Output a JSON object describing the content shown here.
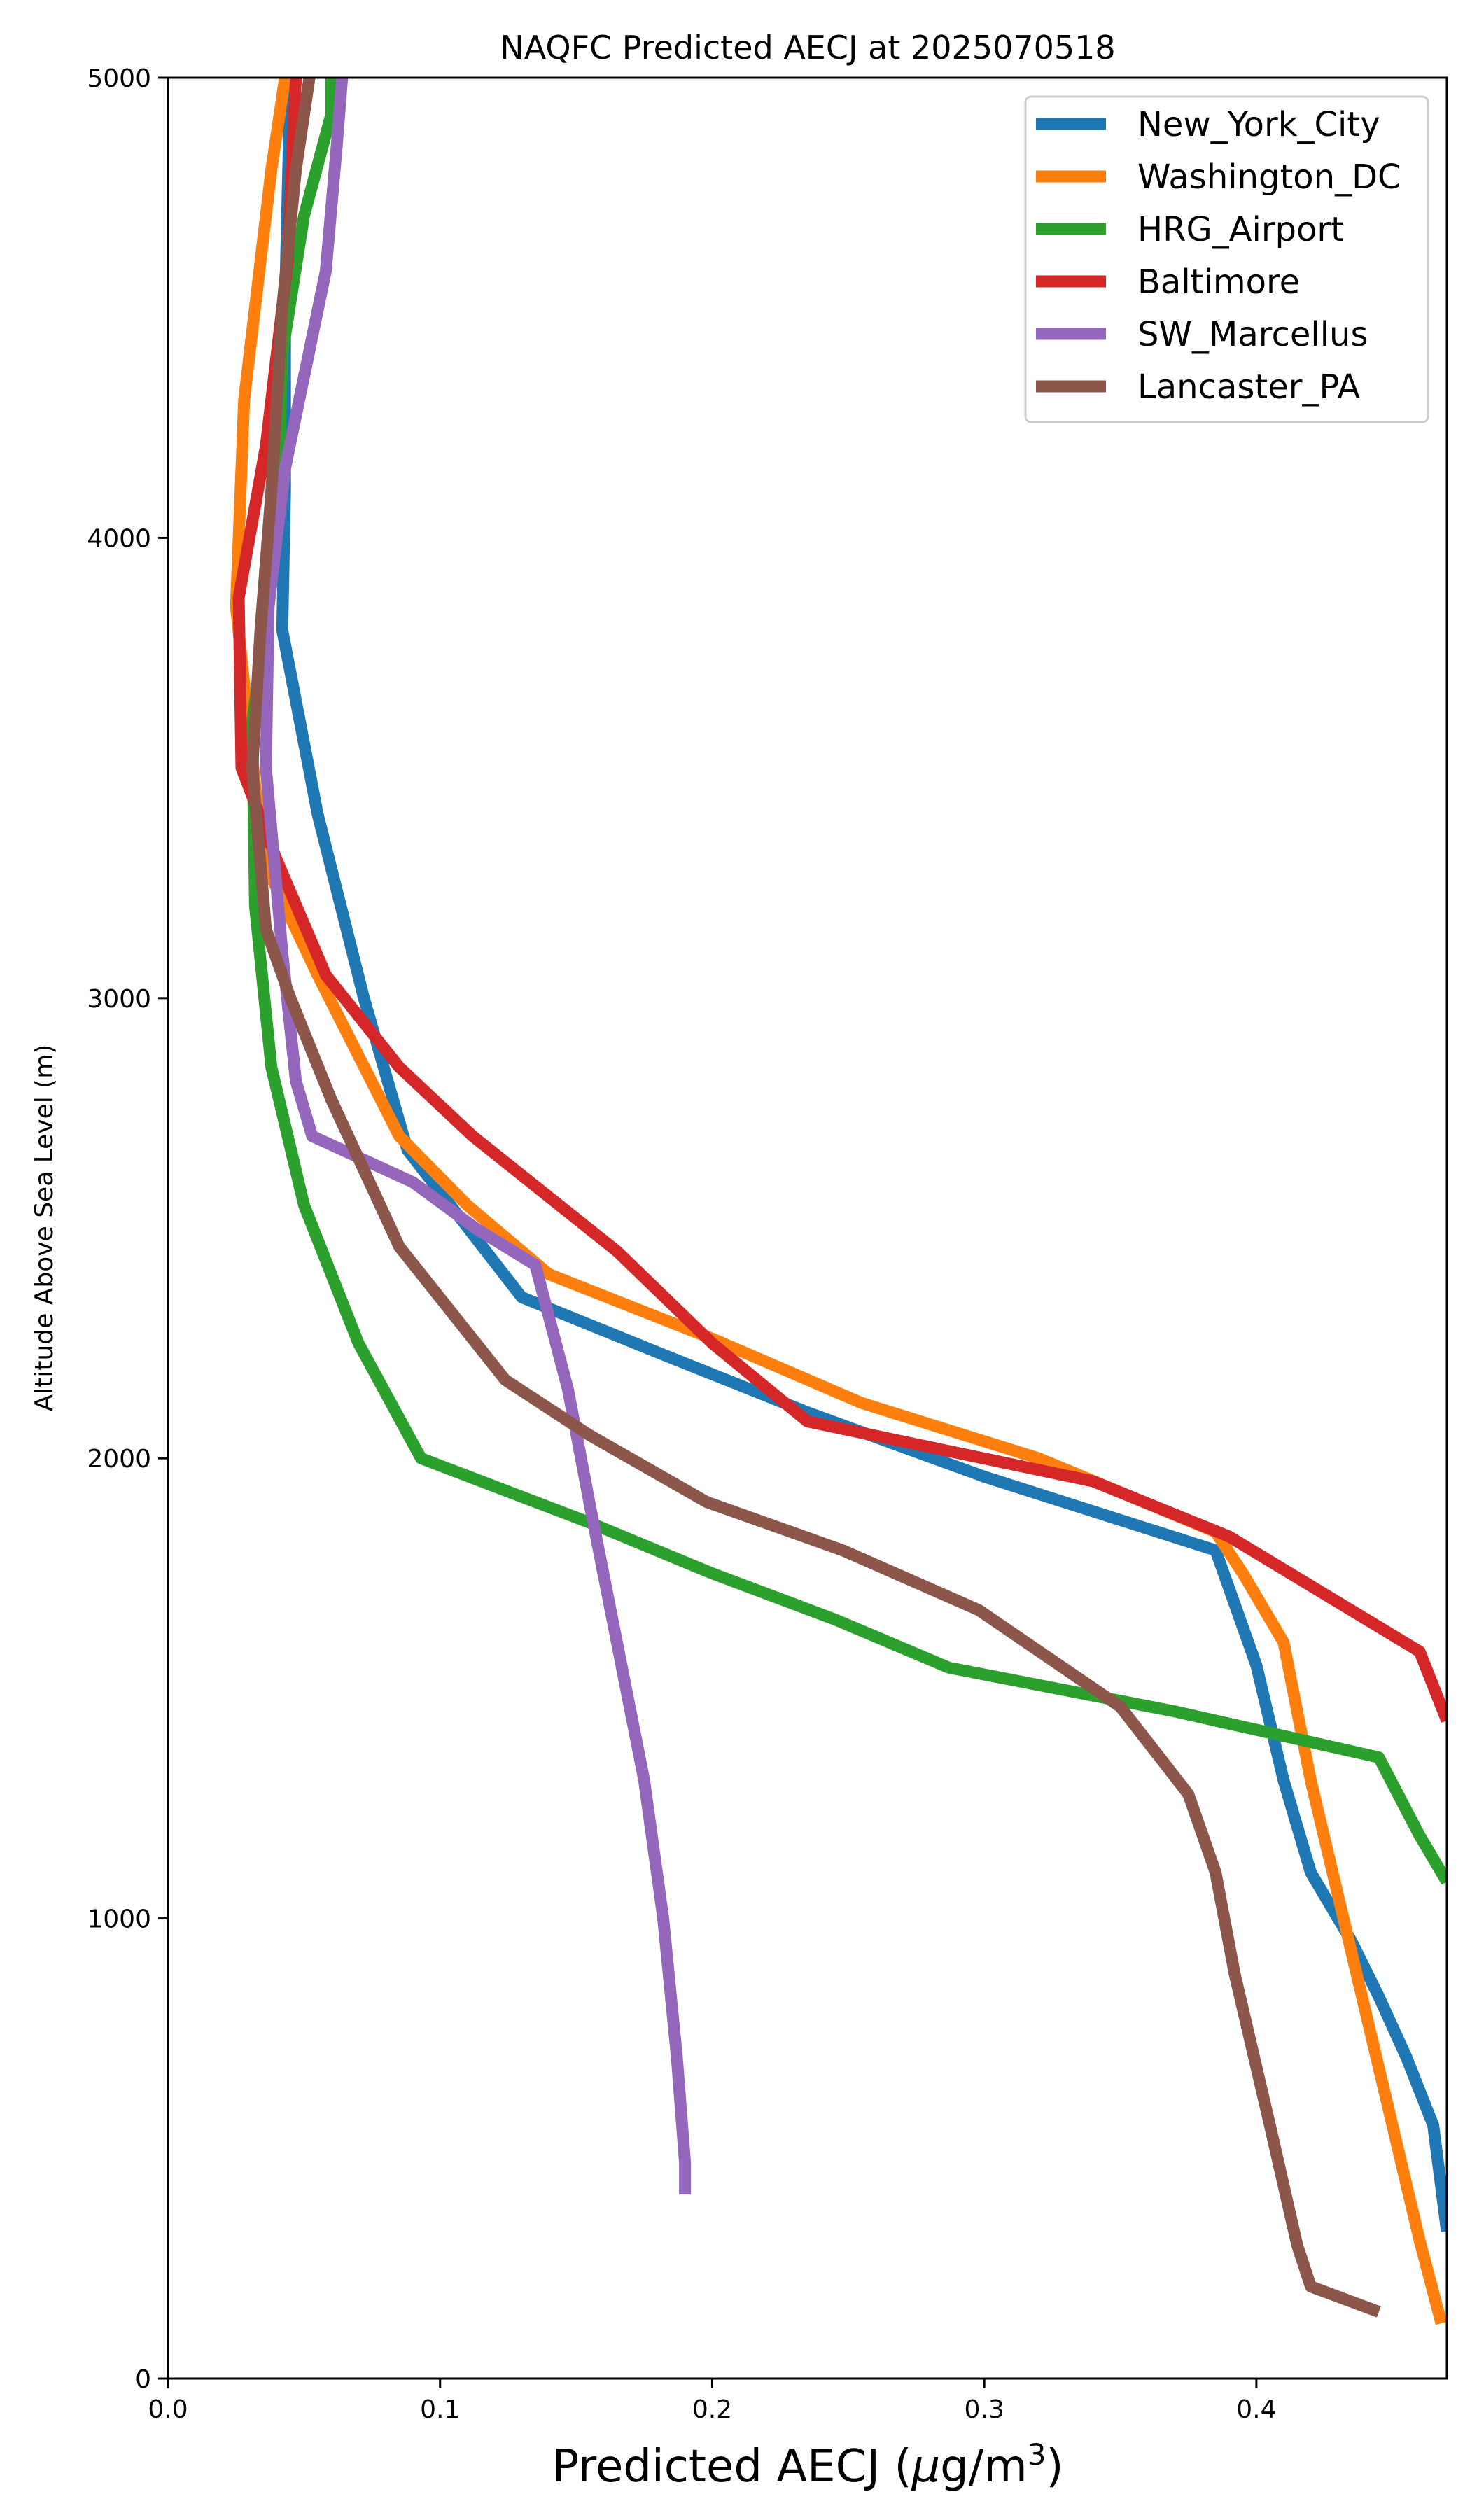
{
  "chart_data": {
    "type": "line",
    "title": "NAQFC Predicted AECJ at 2025070518",
    "xlabel_prefix": "Predicted AECJ (",
    "xlabel_mu": "μ",
    "xlabel_unit": "g/m",
    "xlabel_sup": "3",
    "xlabel_suffix": ")",
    "ylabel": "Altitude Above Sea Level (m)",
    "xlim": [
      0.0,
      0.47
    ],
    "ylim": [
      0,
      5000
    ],
    "xticks": [
      0.0,
      0.1,
      0.2,
      0.3,
      0.4
    ],
    "xtick_labels": [
      "0.0",
      "0.1",
      "0.2",
      "0.3",
      "0.4"
    ],
    "yticks": [
      0,
      1000,
      2000,
      3000,
      4000,
      5000
    ],
    "ytick_labels": [
      "0",
      "1000",
      "2000",
      "3000",
      "4000",
      "5000"
    ],
    "grid": false,
    "legend_position": "top-right",
    "series": [
      {
        "name": "New_York_City",
        "color": "#1f77b4",
        "points": [
          [
            0.47,
            320
          ],
          [
            0.465,
            550
          ],
          [
            0.455,
            700
          ],
          [
            0.445,
            830
          ],
          [
            0.435,
            950
          ],
          [
            0.42,
            1100
          ],
          [
            0.41,
            1300
          ],
          [
            0.4,
            1550
          ],
          [
            0.385,
            1800
          ],
          [
            0.3,
            1960
          ],
          [
            0.235,
            2100
          ],
          [
            0.18,
            2230
          ],
          [
            0.13,
            2350
          ],
          [
            0.088,
            2670
          ],
          [
            0.072,
            3000
          ],
          [
            0.055,
            3400
          ],
          [
            0.042,
            3800
          ],
          [
            0.043,
            4100
          ],
          [
            0.043,
            4500
          ],
          [
            0.045,
            5000
          ]
        ]
      },
      {
        "name": "Washington_DC",
        "color": "#ff7f0e",
        "points": [
          [
            0.468,
            120
          ],
          [
            0.46,
            300
          ],
          [
            0.45,
            550
          ],
          [
            0.44,
            800
          ],
          [
            0.43,
            1050
          ],
          [
            0.42,
            1300
          ],
          [
            0.41,
            1600
          ],
          [
            0.395,
            1750
          ],
          [
            0.385,
            1840
          ],
          [
            0.32,
            2000
          ],
          [
            0.255,
            2120
          ],
          [
            0.2,
            2260
          ],
          [
            0.14,
            2400
          ],
          [
            0.11,
            2550
          ],
          [
            0.085,
            2700
          ],
          [
            0.055,
            3050
          ],
          [
            0.035,
            3300
          ],
          [
            0.025,
            3850
          ],
          [
            0.028,
            4300
          ],
          [
            0.038,
            4800
          ],
          [
            0.043,
            5000
          ]
        ]
      },
      {
        "name": "HRG_Airport",
        "color": "#2ca02c",
        "points": [
          [
            0.47,
            1080
          ],
          [
            0.46,
            1180
          ],
          [
            0.445,
            1350
          ],
          [
            0.37,
            1450
          ],
          [
            0.287,
            1545
          ],
          [
            0.245,
            1650
          ],
          [
            0.2,
            1750
          ],
          [
            0.155,
            1860
          ],
          [
            0.093,
            2000
          ],
          [
            0.07,
            2250
          ],
          [
            0.05,
            2550
          ],
          [
            0.038,
            2850
          ],
          [
            0.032,
            3200
          ],
          [
            0.031,
            3600
          ],
          [
            0.04,
            4000
          ],
          [
            0.042,
            4400
          ],
          [
            0.05,
            4700
          ],
          [
            0.06,
            4920
          ],
          [
            0.06,
            5000
          ]
        ]
      },
      {
        "name": "Baltimore",
        "color": "#d62728",
        "points": [
          [
            0.47,
            1430
          ],
          [
            0.46,
            1580
          ],
          [
            0.39,
            1830
          ],
          [
            0.34,
            1950
          ],
          [
            0.235,
            2080
          ],
          [
            0.2,
            2250
          ],
          [
            0.165,
            2450
          ],
          [
            0.112,
            2700
          ],
          [
            0.085,
            2850
          ],
          [
            0.058,
            3050
          ],
          [
            0.04,
            3300
          ],
          [
            0.027,
            3500
          ],
          [
            0.026,
            3870
          ],
          [
            0.036,
            4200
          ],
          [
            0.044,
            4600
          ],
          [
            0.047,
            5000
          ]
        ]
      },
      {
        "name": "SW_Marcellus",
        "color": "#9467bd",
        "points": [
          [
            0.19,
            400
          ],
          [
            0.19,
            470
          ],
          [
            0.187,
            700
          ],
          [
            0.182,
            1000
          ],
          [
            0.175,
            1300
          ],
          [
            0.165,
            1600
          ],
          [
            0.155,
            1900
          ],
          [
            0.147,
            2150
          ],
          [
            0.135,
            2420
          ],
          [
            0.113,
            2500
          ],
          [
            0.09,
            2600
          ],
          [
            0.053,
            2700
          ],
          [
            0.047,
            2820
          ],
          [
            0.042,
            3100
          ],
          [
            0.036,
            3500
          ],
          [
            0.037,
            3850
          ],
          [
            0.043,
            4150
          ],
          [
            0.058,
            4580
          ],
          [
            0.062,
            4850
          ],
          [
            0.064,
            5000
          ]
        ]
      },
      {
        "name": "Lancaster_PA",
        "color": "#8c564b",
        "points": [
          [
            0.445,
            145
          ],
          [
            0.42,
            200
          ],
          [
            0.415,
            290
          ],
          [
            0.405,
            550
          ],
          [
            0.392,
            880
          ],
          [
            0.385,
            1100
          ],
          [
            0.375,
            1270
          ],
          [
            0.35,
            1460
          ],
          [
            0.298,
            1670
          ],
          [
            0.248,
            1800
          ],
          [
            0.198,
            1905
          ],
          [
            0.155,
            2050
          ],
          [
            0.124,
            2170
          ],
          [
            0.085,
            2460
          ],
          [
            0.06,
            2780
          ],
          [
            0.045,
            3000
          ],
          [
            0.036,
            3150
          ],
          [
            0.031,
            3500
          ],
          [
            0.034,
            3800
          ],
          [
            0.038,
            4100
          ],
          [
            0.042,
            4500
          ],
          [
            0.047,
            4800
          ],
          [
            0.052,
            5000
          ]
        ]
      }
    ]
  }
}
